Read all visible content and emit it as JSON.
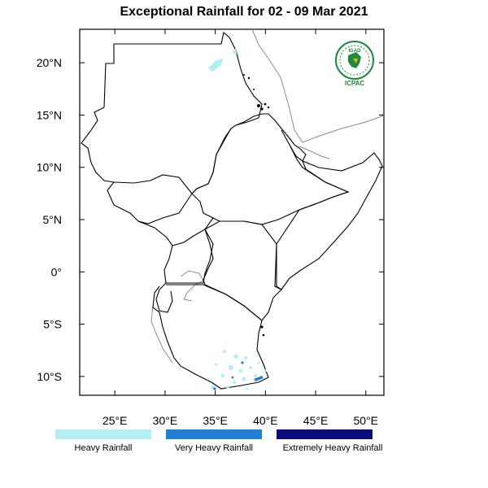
{
  "title": "Exceptional Rainfall for 02 - 09 Mar 2021",
  "map": {
    "lon_range": [
      21.5,
      51.8
    ],
    "lat_range": [
      -11.8,
      23.2
    ],
    "lon_ticks": [
      {
        "value": 25,
        "label": "25°E"
      },
      {
        "value": 30,
        "label": "30°E"
      },
      {
        "value": 35,
        "label": "35°E"
      },
      {
        "value": 40,
        "label": "40°E"
      },
      {
        "value": 45,
        "label": "45°E"
      },
      {
        "value": 50,
        "label": "50°E"
      }
    ],
    "lat_ticks": [
      {
        "value": 20,
        "label": "20°N"
      },
      {
        "value": 15,
        "label": "15°N"
      },
      {
        "value": 10,
        "label": "10°N"
      },
      {
        "value": 5,
        "label": "5°N"
      },
      {
        "value": 0,
        "label": "0°"
      },
      {
        "value": -5,
        "label": "5°S"
      },
      {
        "value": -10,
        "label": "10°S"
      }
    ]
  },
  "logo": {
    "top_text": "IGAD",
    "bottom_text": "ICPAC",
    "color": "#1e8a3c"
  },
  "legend": [
    {
      "label": "Heavy Rainfall",
      "color": "#b3eef0"
    },
    {
      "label": "Very Heavy Rainfall",
      "color": "#1f7fd6"
    },
    {
      "label": "Extremely Heavy Rainfall",
      "color": "#0a0a7a"
    }
  ]
}
